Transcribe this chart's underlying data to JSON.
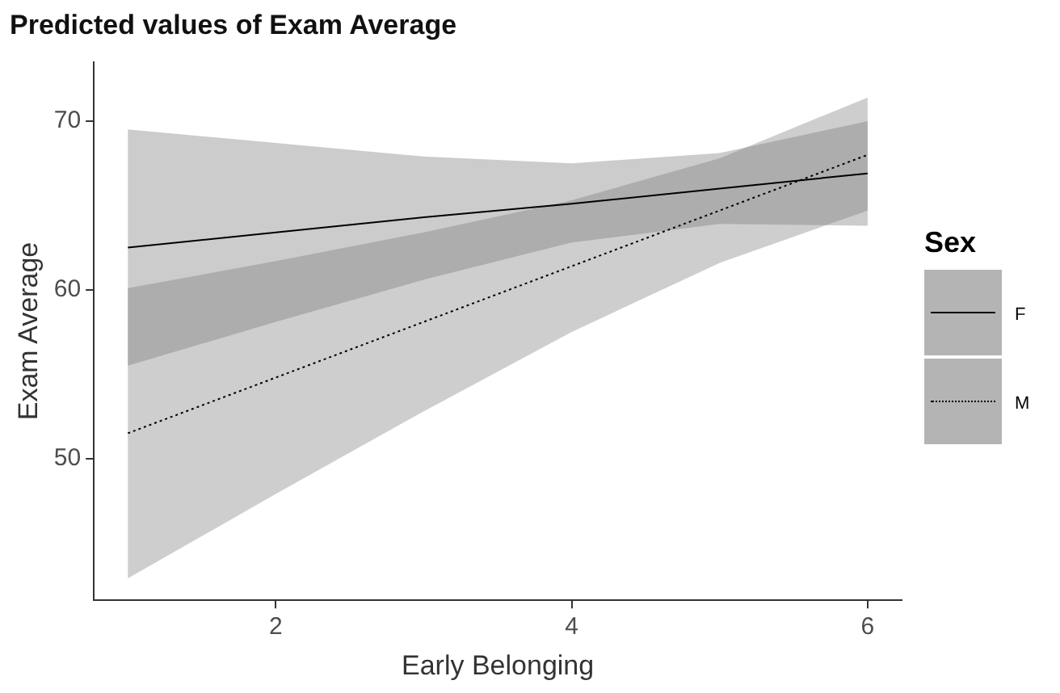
{
  "chart_data": {
    "type": "line",
    "title": "Predicted values of Exam Average",
    "xlabel": "Early Belonging",
    "ylabel": "Exam Average",
    "legend_title": "Sex",
    "legend": "right",
    "grid": false,
    "marker": "none",
    "xlim": [
      0.77,
      6.23
    ],
    "xticks": [
      2,
      4,
      6
    ],
    "ylim": [
      41.6,
      73.5
    ],
    "yticks": [
      50,
      60,
      70
    ],
    "series": [
      {
        "name": "F",
        "color": "#000000",
        "line_style": "solid",
        "x": [
          1,
          2,
          3,
          4,
          5,
          6
        ],
        "values": [
          62.5,
          63.4,
          64.3,
          65.1,
          66.0,
          66.9
        ],
        "lower": [
          55.5,
          58.1,
          60.6,
          62.8,
          63.9,
          63.8
        ],
        "upper": [
          69.5,
          68.7,
          67.9,
          67.5,
          68.1,
          70.0
        ]
      },
      {
        "name": "M",
        "color": "#000000",
        "line_style": "dotted",
        "x": [
          1,
          2,
          3,
          4,
          5,
          6
        ],
        "values": [
          51.5,
          54.8,
          58.1,
          61.4,
          64.7,
          68.0
        ],
        "lower": [
          42.9,
          47.9,
          52.8,
          57.5,
          61.6,
          64.7
        ],
        "upper": [
          60.1,
          61.7,
          63.4,
          65.3,
          67.8,
          71.4
        ]
      }
    ]
  }
}
